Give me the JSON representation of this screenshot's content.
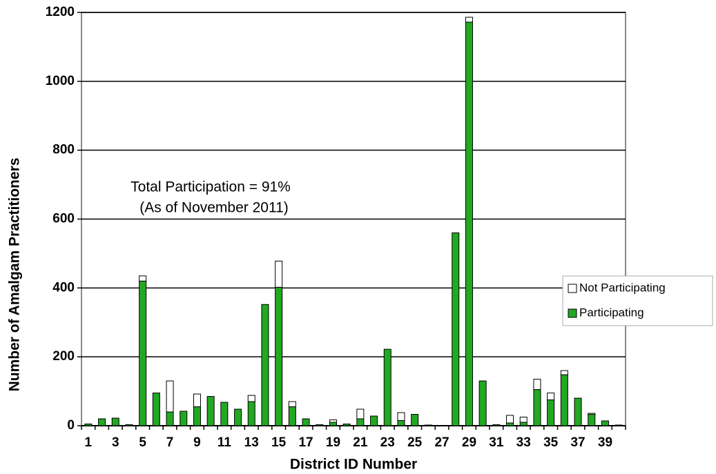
{
  "chart_data": {
    "type": "stacked_bar",
    "x_label": "District ID Number",
    "y_label": "Number of Amalgam Practitioners",
    "annotations": [
      "Total Participation = 91%",
      "(As of November 2011)"
    ],
    "categories": [
      "1",
      null,
      "3",
      null,
      "5",
      null,
      "7",
      null,
      "9",
      null,
      "11",
      null,
      "13",
      null,
      "15",
      null,
      "17",
      null,
      "19",
      null,
      "21",
      null,
      "23",
      null,
      "25",
      null,
      "27",
      null,
      "29",
      null,
      "31",
      null,
      "33",
      null,
      "35",
      null,
      "37",
      null,
      "39",
      null
    ],
    "series": [
      {
        "name": "Participating",
        "color": "#22a822",
        "values": [
          5,
          20,
          22,
          3,
          420,
          95,
          40,
          42,
          55,
          85,
          68,
          48,
          70,
          352,
          402,
          55,
          20,
          3,
          10,
          5,
          20,
          28,
          222,
          15,
          33,
          2,
          0,
          560,
          1172,
          130,
          3,
          8,
          10,
          105,
          75,
          148,
          80,
          33,
          14,
          2
        ]
      },
      {
        "name": "Not Participating",
        "color": "#ffffff",
        "values": [
          0,
          0,
          0,
          0,
          15,
          0,
          90,
          0,
          37,
          0,
          0,
          0,
          18,
          0,
          76,
          15,
          0,
          0,
          7,
          0,
          28,
          0,
          0,
          23,
          0,
          0,
          0,
          0,
          14,
          0,
          0,
          22,
          15,
          30,
          20,
          12,
          0,
          3,
          0,
          0
        ]
      }
    ],
    "ylim": [
      0,
      1200
    ],
    "yticks": [
      0,
      200,
      400,
      600,
      800,
      1000,
      1200
    ],
    "grid": true,
    "legend": "right"
  }
}
